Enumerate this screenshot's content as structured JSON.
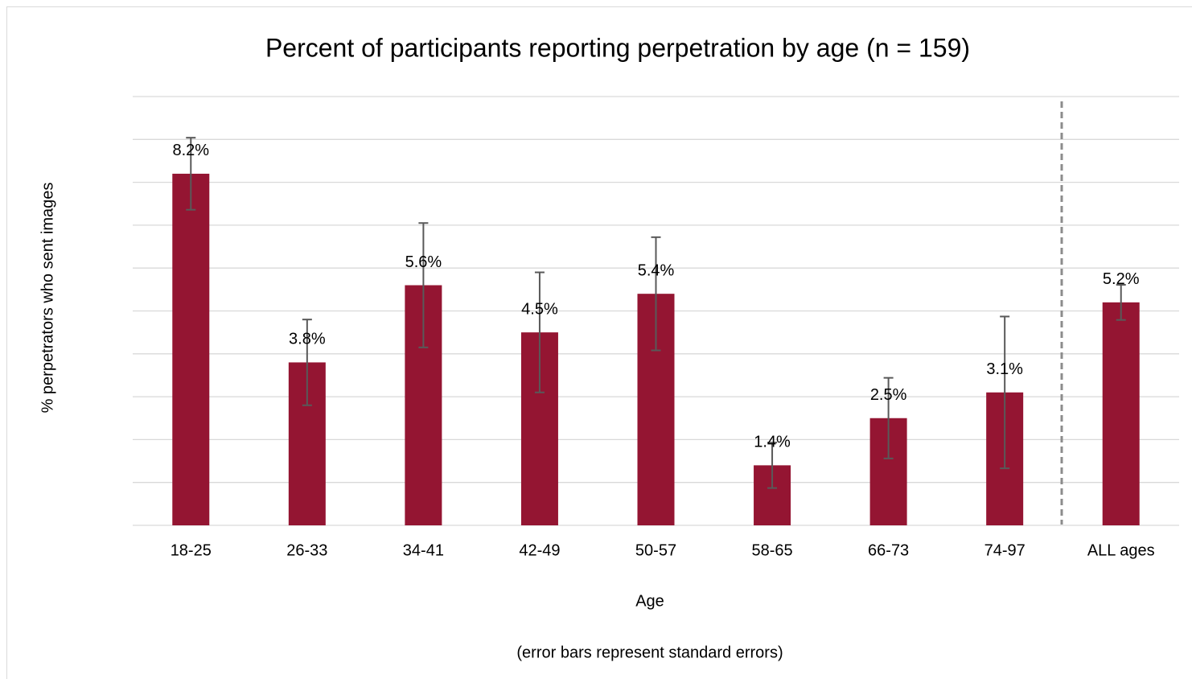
{
  "chart_data": {
    "type": "bar",
    "title": "Percent of participants reporting perpetration by age (n = 159)",
    "y_label": "% perpetrators who sent images",
    "x_label": "Age",
    "note": "(error bars represent standard errors)",
    "categories": [
      "18-25",
      "26-33",
      "34-41",
      "42-49",
      "50-57",
      "58-65",
      "66-73",
      "74-97",
      "ALL ages"
    ],
    "values": [
      8.2,
      3.8,
      5.6,
      4.5,
      5.4,
      1.4,
      2.5,
      3.1,
      5.2
    ],
    "value_labels": [
      "8.2%",
      "3.8%",
      "5.6%",
      "4.5%",
      "5.4%",
      "1.4%",
      "2.5%",
      "3.1%",
      "5.2%"
    ],
    "errors": [
      0.84,
      1.0,
      1.45,
      1.4,
      1.32,
      0.53,
      0.94,
      1.77,
      0.41
    ],
    "color": "#941532",
    "error_color": "#595959",
    "ylim": [
      0,
      10
    ],
    "yticks": [
      0,
      1,
      2,
      3,
      4,
      5,
      6,
      7,
      8,
      9,
      10
    ],
    "grid": true
  }
}
